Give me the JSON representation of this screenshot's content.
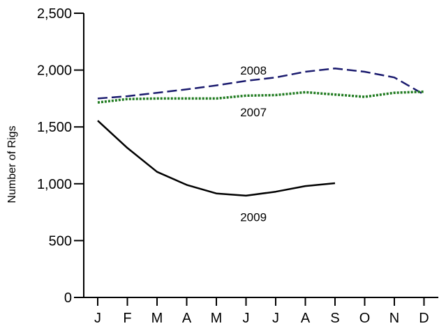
{
  "chart_data": {
    "type": "line",
    "title": "",
    "xlabel": "",
    "ylabel": "Number of Rigs",
    "categories": [
      "J",
      "F",
      "M",
      "A",
      "M",
      "J",
      "J",
      "A",
      "S",
      "O",
      "N",
      "D"
    ],
    "ylim": [
      0,
      2500
    ],
    "yticks": [
      0,
      500,
      1000,
      1500,
      2000,
      2500
    ],
    "ytick_labels": [
      "0",
      "500",
      "1,000",
      "1,500",
      "2,000",
      "2,500"
    ],
    "grid": false,
    "series": [
      {
        "name": "2008",
        "values": [
          1750,
          1770,
          1800,
          1830,
          1865,
          1905,
          1935,
          1985,
          2015,
          1985,
          1935,
          1785
        ],
        "color": "#1a1a6e",
        "style": "dashed"
      },
      {
        "name": "2007",
        "values": [
          1715,
          1745,
          1750,
          1750,
          1750,
          1775,
          1780,
          1805,
          1785,
          1765,
          1800,
          1810
        ],
        "color": "#1e7a1e",
        "style": "dotted"
      },
      {
        "name": "2009",
        "values": [
          1555,
          1315,
          1105,
          990,
          915,
          895,
          930,
          980,
          1005,
          null,
          null,
          null
        ],
        "color": "#000000",
        "style": "solid"
      }
    ]
  }
}
